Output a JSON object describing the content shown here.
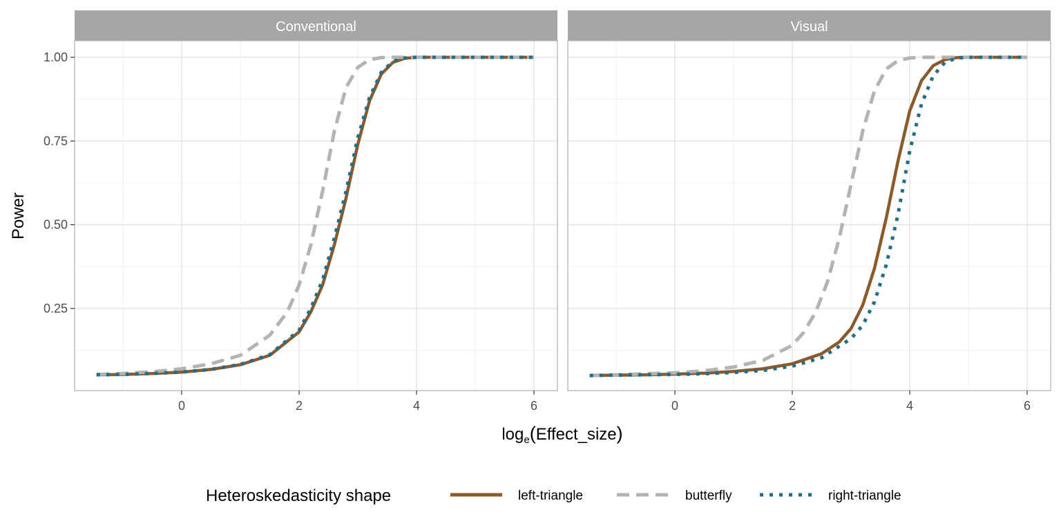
{
  "chart_data": {
    "type": "line",
    "facets": [
      "Conventional",
      "Visual"
    ],
    "xlabel": {
      "base": "log",
      "subscript": "e",
      "arg": "Effect_size"
    },
    "ylabel": "Power",
    "xlim": [
      -1.85,
      6.35
    ],
    "ylim": [
      0.0,
      1.0
    ],
    "xticks": [
      0,
      2,
      4,
      6
    ],
    "xtick_labels": [
      "0",
      "2",
      "4",
      "6"
    ],
    "yticks": [
      0.25,
      0.5,
      0.75,
      1.0
    ],
    "ytick_labels": [
      "0.25",
      "0.50",
      "0.75",
      "1.00"
    ],
    "grid": true,
    "legend": {
      "title": "Heteroskedasticity shape",
      "position": "bottom",
      "entries": [
        {
          "label": "left-triangle",
          "color": "#8B5A2B",
          "dash": "solid"
        },
        {
          "label": "butterfly",
          "color": "#B3B3B3",
          "dash": "dashed"
        },
        {
          "label": "right-triangle",
          "color": "#1F6F8B",
          "dash": "dotted"
        }
      ]
    },
    "series": [
      {
        "facet": "Conventional",
        "name": "left-triangle",
        "x": [
          -1.45,
          -1.0,
          -0.5,
          0.0,
          0.5,
          1.0,
          1.5,
          2.0,
          2.2,
          2.4,
          2.6,
          2.8,
          3.0,
          3.2,
          3.4,
          3.6,
          3.8,
          4.0,
          5.0,
          6.0
        ],
        "y": [
          0.052,
          0.053,
          0.056,
          0.06,
          0.068,
          0.082,
          0.11,
          0.18,
          0.24,
          0.32,
          0.44,
          0.58,
          0.74,
          0.87,
          0.95,
          0.985,
          0.997,
          1.0,
          1.0,
          1.0
        ]
      },
      {
        "facet": "Conventional",
        "name": "butterfly",
        "x": [
          -1.45,
          -1.0,
          -0.5,
          0.0,
          0.5,
          1.0,
          1.5,
          1.8,
          2.0,
          2.2,
          2.4,
          2.6,
          2.8,
          3.0,
          3.2,
          3.4,
          3.6,
          4.0,
          5.0,
          6.0
        ],
        "y": [
          0.053,
          0.056,
          0.061,
          0.07,
          0.085,
          0.11,
          0.17,
          0.24,
          0.32,
          0.44,
          0.6,
          0.78,
          0.91,
          0.97,
          0.993,
          0.999,
          1.0,
          1.0,
          1.0,
          1.0
        ]
      },
      {
        "facet": "Conventional",
        "name": "right-triangle",
        "x": [
          -1.45,
          -1.0,
          -0.5,
          0.0,
          0.5,
          1.0,
          1.5,
          2.0,
          2.2,
          2.4,
          2.6,
          2.8,
          3.0,
          3.2,
          3.4,
          3.6,
          3.8,
          4.0,
          5.0,
          6.0
        ],
        "y": [
          0.052,
          0.053,
          0.056,
          0.06,
          0.068,
          0.083,
          0.112,
          0.185,
          0.25,
          0.335,
          0.46,
          0.6,
          0.76,
          0.88,
          0.955,
          0.988,
          0.998,
          1.0,
          1.0,
          1.0
        ]
      },
      {
        "facet": "Visual",
        "name": "left-triangle",
        "x": [
          -1.45,
          -1.0,
          -0.5,
          0.0,
          0.5,
          1.0,
          1.5,
          2.0,
          2.5,
          2.8,
          3.0,
          3.2,
          3.4,
          3.6,
          3.8,
          4.0,
          4.2,
          4.4,
          4.6,
          4.8,
          5.0,
          6.0
        ],
        "y": [
          0.05,
          0.051,
          0.052,
          0.054,
          0.057,
          0.062,
          0.07,
          0.085,
          0.115,
          0.15,
          0.19,
          0.26,
          0.37,
          0.52,
          0.69,
          0.84,
          0.93,
          0.975,
          0.993,
          0.999,
          1.0,
          1.0
        ]
      },
      {
        "facet": "Visual",
        "name": "butterfly",
        "x": [
          -1.45,
          -1.0,
          -0.5,
          0.0,
          0.5,
          1.0,
          1.5,
          2.0,
          2.2,
          2.4,
          2.6,
          2.8,
          3.0,
          3.2,
          3.4,
          3.6,
          3.8,
          4.0,
          4.2,
          5.0,
          6.0
        ],
        "y": [
          0.05,
          0.052,
          0.055,
          0.058,
          0.064,
          0.075,
          0.095,
          0.14,
          0.18,
          0.24,
          0.33,
          0.46,
          0.62,
          0.78,
          0.9,
          0.965,
          0.99,
          0.998,
          1.0,
          1.0,
          1.0
        ]
      },
      {
        "facet": "Visual",
        "name": "right-triangle",
        "x": [
          -1.45,
          -1.0,
          -0.5,
          0.0,
          0.5,
          1.0,
          1.5,
          2.0,
          2.5,
          3.0,
          3.2,
          3.4,
          3.6,
          3.8,
          4.0,
          4.2,
          4.4,
          4.6,
          4.8,
          5.0,
          6.0
        ],
        "y": [
          0.05,
          0.051,
          0.052,
          0.053,
          0.055,
          0.059,
          0.065,
          0.078,
          0.103,
          0.16,
          0.2,
          0.27,
          0.38,
          0.53,
          0.72,
          0.86,
          0.945,
          0.985,
          0.998,
          1.0,
          1.0
        ]
      }
    ]
  }
}
